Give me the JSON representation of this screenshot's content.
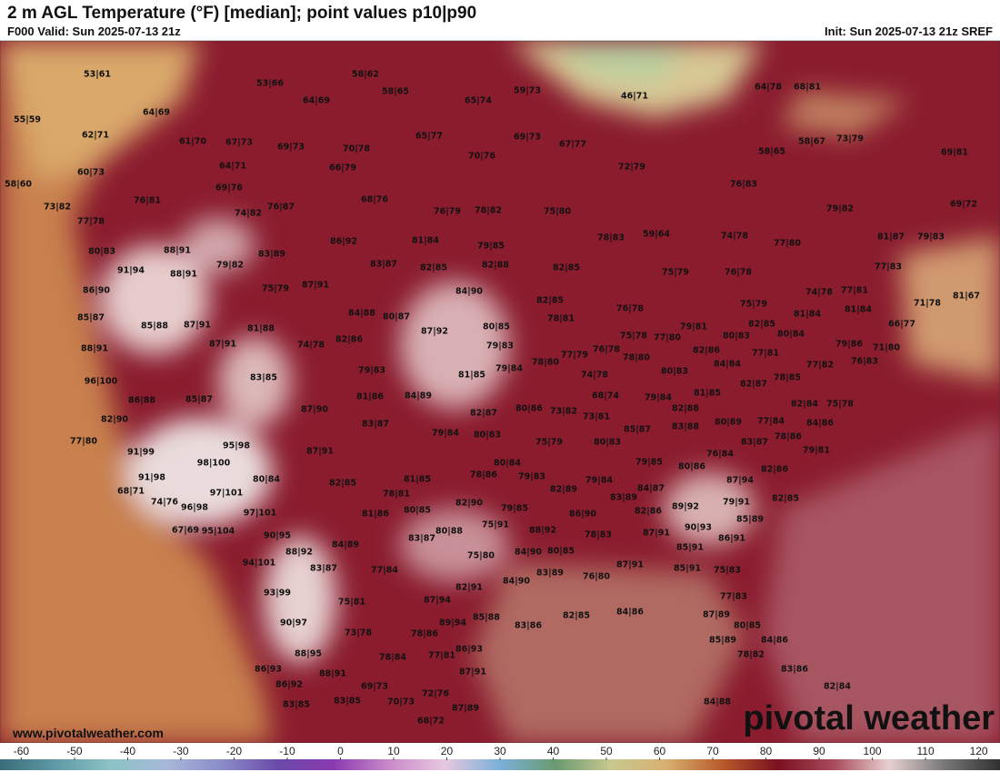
{
  "header": {
    "title": "2 m AGL Temperature (°F) [median]; point values p10|p90",
    "valid": "F000 Valid: Sun 2025-07-13 21z",
    "init": "Init: Sun 2025-07-13 21z SREF"
  },
  "points": [
    "53|61",
    "53|66",
    "58|62",
    "58|65",
    "59|73",
    "46|71",
    "64|78",
    "68|81",
    "55|59",
    "64|69",
    "64|69",
    "65|74",
    "62|71",
    "61|70",
    "67|73",
    "69|73",
    "70|78",
    "65|77",
    "69|73",
    "67|77",
    "58|67",
    "73|79",
    "58|65",
    "69|81",
    "70|76",
    "64|71",
    "66|79",
    "72|79",
    "60|73",
    "58|60",
    "69|76",
    "76|83",
    "76|81",
    "68|76",
    "73|82",
    "74|82",
    "76|87",
    "76|79",
    "78|82",
    "75|80",
    "79|82",
    "69|72",
    "77|78",
    "86|92",
    "81|84",
    "79|85",
    "78|83",
    "59|64",
    "74|78",
    "77|80",
    "81|87",
    "79|83",
    "88|91",
    "83|89",
    "83|87",
    "82|85",
    "82|88",
    "82|85",
    "77|83",
    "80|83",
    "79|82",
    "91|94",
    "88|91",
    "75|79",
    "76|78",
    "86|90",
    "75|79",
    "87|91",
    "84|90",
    "74|78",
    "77|81",
    "71|78",
    "81|67",
    "82|85",
    "75|79",
    "84|88",
    "80|87",
    "76|78",
    "81|84",
    "81|84",
    "85|87",
    "78|81",
    "85|88",
    "87|91",
    "81|88",
    "80|85",
    "87|92",
    "79|81",
    "82|85",
    "80|84",
    "66|77",
    "82|86",
    "74|78",
    "79|83",
    "75|78",
    "77|80",
    "80|83",
    "87|91",
    "79|86",
    "71|80",
    "88|91",
    "77|79",
    "76|78",
    "82|86",
    "77|81",
    "78|80",
    "78|80",
    "84|84",
    "76|83",
    "77|82",
    "79|83",
    "79|84",
    "80|83",
    "83|85",
    "81|85",
    "74|78",
    "78|85",
    "96|100",
    "82|87",
    "81|85",
    "81|86",
    "84|89",
    "68|74",
    "79|84",
    "86|88",
    "85|87",
    "82|84",
    "75|78",
    "87|90",
    "82|87",
    "80|86",
    "73|82",
    "82|88",
    "82|90",
    "73|81",
    "83|87",
    "77|84",
    "84|86",
    "80|89",
    "83|88",
    "85|87",
    "79|84",
    "80|83",
    "78|86",
    "77|80",
    "95|98",
    "87|91",
    "75|79",
    "80|83",
    "83|87",
    "79|81",
    "91|99",
    "76|84",
    "79|85",
    "80|86",
    "98|100",
    "80|84",
    "82|86",
    "87|94",
    "81|85",
    "78|86",
    "79|83",
    "79|84",
    "84|87",
    "91|98",
    "80|84",
    "82|85",
    "68|71",
    "97|101",
    "82|89",
    "78|81",
    "83|89",
    "79|91",
    "82|85",
    "74|76",
    "82|90",
    "79|85",
    "89|92",
    "82|86",
    "96|98",
    "86|90",
    "80|85",
    "81|86",
    "97|101",
    "85|89",
    "75|91",
    "67|69",
    "95|104",
    "88|92",
    "87|91",
    "90|93",
    "90|95",
    "80|88",
    "83|87",
    "78|83",
    "86|91",
    "84|89",
    "88|92",
    "84|90",
    "80|85",
    "85|91",
    "75|80",
    "94|101",
    "83|87",
    "77|84",
    "87|91",
    "85|91",
    "75|83",
    "83|89",
    "76|80",
    "84|90",
    "82|91",
    "93|99",
    "87|94",
    "75|81",
    "77|83",
    "84|86",
    "82|85",
    "85|88",
    "87|89",
    "89|94",
    "83|86",
    "90|97",
    "80|85",
    "73|78",
    "78|86",
    "85|89",
    "84|86",
    "88|95",
    "86|93",
    "78|84",
    "77|81",
    "78|82",
    "86|93",
    "83|86",
    "88|91",
    "87|91",
    "86|92",
    "69|73",
    "82|84",
    "72|76",
    "83|85",
    "83|85",
    "70|73",
    "84|88",
    "87|89",
    "68|72"
  ],
  "colorbar": {
    "ticks": [
      -60,
      -50,
      -40,
      -30,
      -20,
      -10,
      0,
      10,
      20,
      30,
      40,
      50,
      60,
      70,
      80,
      90,
      100,
      110,
      120
    ],
    "lim": [
      -64,
      124
    ],
    "colors": [
      "#3a6d7a",
      "#5f9aa6",
      "#8cc3c6",
      "#a8b8d8",
      "#8a8cc8",
      "#6a4aa8",
      "#8a3ab0",
      "#c88ac8",
      "#e8c8e0",
      "#7ab0d8",
      "#6a9a70",
      "#c8c890",
      "#d8b070",
      "#b85a2a",
      "#7a1020",
      "#a84a5a",
      "#e8d0d0",
      "#787878",
      "#303030"
    ]
  },
  "footer": {
    "website": "www.pivotalweather.com",
    "logo": "pivotal weather"
  }
}
